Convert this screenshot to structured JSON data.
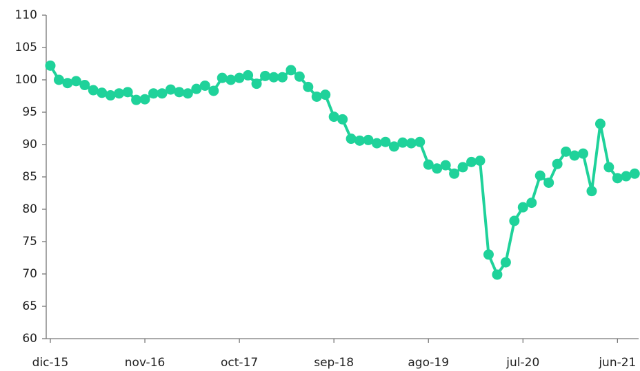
{
  "chart_data": {
    "type": "line",
    "categories": [
      "dic-15",
      null,
      null,
      null,
      null,
      null,
      null,
      null,
      null,
      null,
      null,
      "nov-16",
      null,
      null,
      null,
      null,
      null,
      null,
      null,
      null,
      null,
      null,
      "oct-17",
      null,
      null,
      null,
      null,
      null,
      null,
      null,
      null,
      null,
      null,
      "sep-18",
      null,
      null,
      null,
      null,
      null,
      null,
      null,
      null,
      null,
      null,
      "ago-19",
      null,
      null,
      null,
      null,
      null,
      null,
      null,
      null,
      null,
      null,
      "jul-20",
      null,
      null,
      null,
      null,
      null,
      null,
      null,
      null,
      null,
      null,
      "jun-21",
      null,
      null
    ],
    "series": [
      {
        "name": null,
        "color": "#1fd29a",
        "values": [
          102.2,
          100.0,
          99.5,
          99.8,
          99.2,
          98.4,
          98.0,
          97.6,
          97.9,
          98.1,
          96.9,
          97.0,
          97.9,
          97.9,
          98.5,
          98.1,
          97.9,
          98.6,
          99.1,
          98.3,
          100.3,
          100.0,
          100.3,
          100.7,
          99.4,
          100.6,
          100.4,
          100.4,
          101.5,
          100.5,
          98.9,
          97.4,
          97.7,
          94.3,
          93.9,
          90.9,
          90.6,
          90.7,
          90.2,
          90.4,
          89.7,
          90.3,
          90.2,
          90.4,
          86.9,
          86.3,
          86.8,
          85.5,
          86.5,
          87.3,
          87.5,
          73.0,
          69.9,
          71.8,
          78.2,
          80.3,
          81.0,
          85.2,
          84.1,
          87.0,
          88.9,
          88.3,
          88.6,
          82.8,
          93.2,
          86.5,
          84.8,
          85.1,
          85.5
        ]
      }
    ],
    "ylim": [
      60,
      110
    ],
    "yticks": [
      60,
      65,
      70,
      75,
      80,
      85,
      90,
      95,
      100,
      105,
      110
    ]
  }
}
